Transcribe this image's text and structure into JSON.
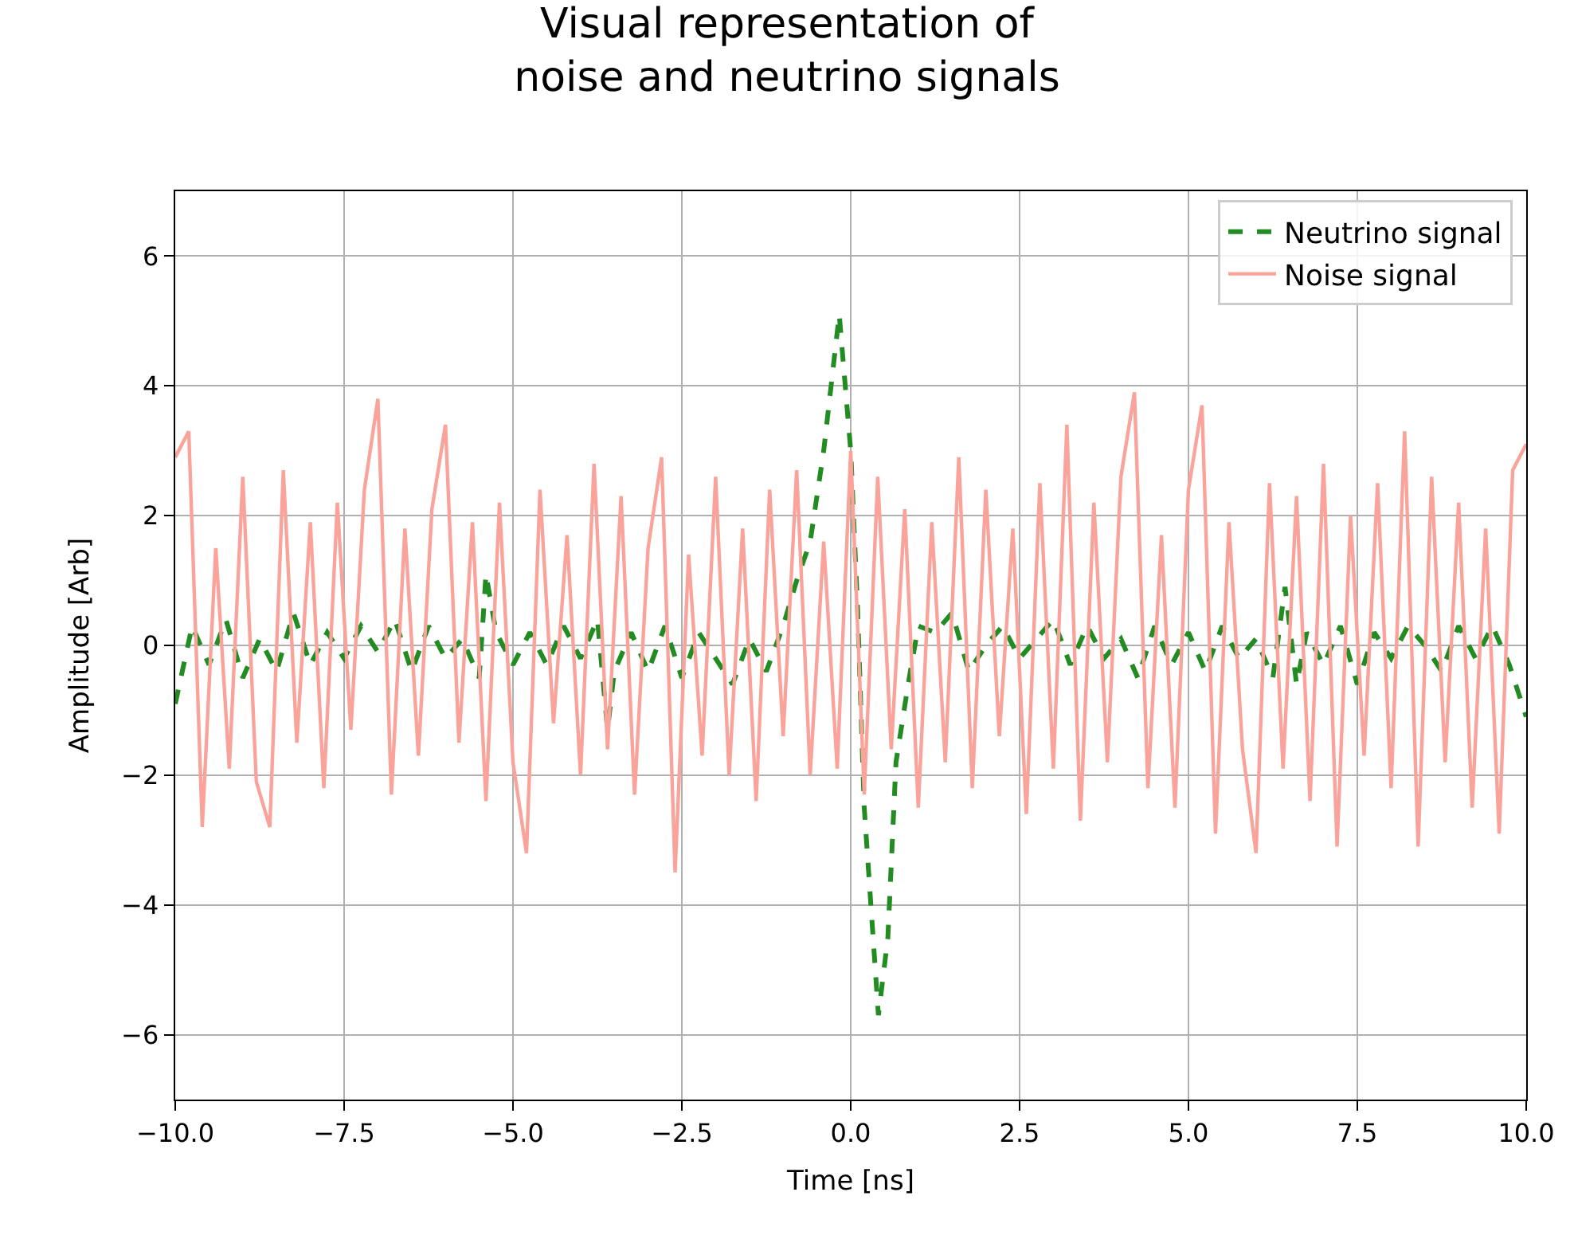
{
  "chart_data": {
    "type": "line",
    "title": "Visual representation of\nnoise and neutrino signals",
    "xlabel": "Time [ns]",
    "ylabel": "Amplitude [Arb]",
    "xlim": [
      -10,
      10
    ],
    "ylim": [
      -7,
      7
    ],
    "xticks": [
      {
        "value": -10,
        "label": "−10.0"
      },
      {
        "value": -7.5,
        "label": "−7.5"
      },
      {
        "value": -5,
        "label": "−5.0"
      },
      {
        "value": -2.5,
        "label": "−2.5"
      },
      {
        "value": 0,
        "label": "0.0"
      },
      {
        "value": 2.5,
        "label": "2.5"
      },
      {
        "value": 5,
        "label": "5.0"
      },
      {
        "value": 7.5,
        "label": "7.5"
      },
      {
        "value": 10,
        "label": "10.0"
      }
    ],
    "yticks": [
      {
        "value": -6,
        "label": "−6"
      },
      {
        "value": -4,
        "label": "−4"
      },
      {
        "value": -2,
        "label": "−2"
      },
      0,
      2,
      4,
      6
    ],
    "grid": true,
    "legend": "top right",
    "marker": "none",
    "series": [
      {
        "name": "Neutrino signal",
        "color": "#228b22",
        "line_style": "dashed",
        "x": [
          -10,
          -9.75,
          -9.5,
          -9.25,
          -9,
          -8.75,
          -8.5,
          -8.25,
          -8,
          -7.75,
          -7.5,
          -7.25,
          -7,
          -6.75,
          -6.5,
          -6.25,
          -6,
          -5.75,
          -5.5,
          -5.4,
          -5.25,
          -5,
          -4.75,
          -4.5,
          -4.25,
          -4,
          -3.75,
          -3.6,
          -3.5,
          -3.25,
          -3,
          -2.75,
          -2.5,
          -2.25,
          -2,
          -1.75,
          -1.5,
          -1.25,
          -1,
          -0.8,
          -0.6,
          -0.4,
          -0.17,
          0,
          0.1,
          0.2,
          0.41,
          0.55,
          0.67,
          0.85,
          1,
          1.25,
          1.5,
          1.75,
          2,
          2.25,
          2.5,
          2.75,
          3,
          3.25,
          3.5,
          3.75,
          4,
          4.25,
          4.5,
          4.75,
          5,
          5.25,
          5.5,
          5.75,
          6,
          6.25,
          6.43,
          6.6,
          6.75,
          7,
          7.25,
          7.5,
          7.75,
          8,
          8.25,
          8.5,
          8.75,
          9,
          9.25,
          9.5,
          9.75,
          10
        ],
        "values": [
          -0.9,
          0.3,
          -0.3,
          0.4,
          -0.5,
          0.1,
          -0.4,
          0.5,
          -0.3,
          0.2,
          -0.2,
          0.3,
          -0.1,
          0.4,
          -0.4,
          0.3,
          -0.2,
          0.1,
          -0.5,
          1.1,
          0.2,
          -0.3,
          0.2,
          -0.3,
          0.3,
          -0.2,
          0.4,
          -1.3,
          -0.4,
          0.2,
          -0.4,
          0.3,
          -0.5,
          0.2,
          -0.2,
          -0.6,
          0.1,
          -0.4,
          0.3,
          1.0,
          1.6,
          3.0,
          5.1,
          3.0,
          0.6,
          -2.5,
          -5.7,
          -4.5,
          -1.8,
          -0.6,
          0.3,
          0.2,
          0.5,
          -0.4,
          0.0,
          0.3,
          -0.2,
          0.1,
          0.4,
          -0.3,
          0.3,
          -0.2,
          0.1,
          -0.5,
          0.3,
          -0.3,
          0.2,
          -0.4,
          0.3,
          -0.2,
          0.1,
          -0.5,
          0.9,
          -0.6,
          0.2,
          -0.3,
          0.3,
          -0.6,
          0.2,
          -0.2,
          0.3,
          0.0,
          -0.4,
          0.3,
          -0.2,
          0.3,
          -0.3,
          -1.1
        ]
      },
      {
        "name": "Noise signal",
        "color": "#f9a39a",
        "line_style": "solid",
        "x": [
          -10,
          -9.8,
          -9.6,
          -9.4,
          -9.2,
          -9,
          -8.8,
          -8.6,
          -8.4,
          -8.2,
          -8,
          -7.8,
          -7.6,
          -7.4,
          -7.2,
          -7,
          -6.8,
          -6.6,
          -6.4,
          -6.2,
          -6,
          -5.8,
          -5.6,
          -5.4,
          -5.2,
          -5,
          -4.8,
          -4.6,
          -4.4,
          -4.2,
          -4,
          -3.8,
          -3.6,
          -3.4,
          -3.2,
          -3,
          -2.8,
          -2.6,
          -2.4,
          -2.2,
          -2,
          -1.8,
          -1.6,
          -1.4,
          -1.2,
          -1,
          -0.8,
          -0.6,
          -0.4,
          -0.2,
          0,
          0.2,
          0.4,
          0.6,
          0.8,
          1,
          1.2,
          1.4,
          1.6,
          1.8,
          2,
          2.2,
          2.4,
          2.6,
          2.8,
          3,
          3.2,
          3.4,
          3.6,
          3.8,
          4,
          4.2,
          4.4,
          4.6,
          4.8,
          5,
          5.2,
          5.4,
          5.6,
          5.8,
          6,
          6.2,
          6.4,
          6.6,
          6.8,
          7,
          7.2,
          7.4,
          7.6,
          7.8,
          8,
          8.2,
          8.4,
          8.6,
          8.8,
          9,
          9.2,
          9.4,
          9.6,
          9.8,
          10
        ],
        "values": [
          2.9,
          3.3,
          -2.8,
          1.5,
          -1.9,
          2.6,
          -2.1,
          -2.8,
          2.7,
          -1.5,
          1.9,
          -2.2,
          2.2,
          -1.3,
          2.4,
          3.8,
          -2.3,
          1.8,
          -1.7,
          2.1,
          3.4,
          -1.5,
          1.9,
          -2.4,
          2.2,
          -1.8,
          -3.2,
          2.4,
          -1.2,
          1.7,
          -2.0,
          2.8,
          -1.6,
          2.3,
          -2.3,
          1.5,
          2.9,
          -3.5,
          1.4,
          -1.7,
          2.6,
          -2.0,
          1.8,
          -2.4,
          2.4,
          -1.4,
          2.7,
          -2.0,
          1.6,
          -1.9,
          3.0,
          -2.3,
          2.6,
          -1.6,
          2.1,
          -2.5,
          1.9,
          -1.8,
          2.9,
          -2.2,
          2.4,
          -1.4,
          1.8,
          -2.6,
          2.5,
          -1.9,
          3.4,
          -2.7,
          2.2,
          -1.8,
          2.6,
          3.9,
          -2.2,
          1.7,
          -2.5,
          2.4,
          3.7,
          -2.9,
          1.9,
          -1.6,
          -3.2,
          2.5,
          -1.9,
          2.3,
          -2.4,
          2.8,
          -3.1,
          2.0,
          -1.7,
          2.5,
          -2.2,
          3.3,
          -3.1,
          2.6,
          -1.8,
          2.2,
          -2.5,
          1.8,
          -2.9,
          2.7,
          3.1
        ]
      }
    ]
  }
}
